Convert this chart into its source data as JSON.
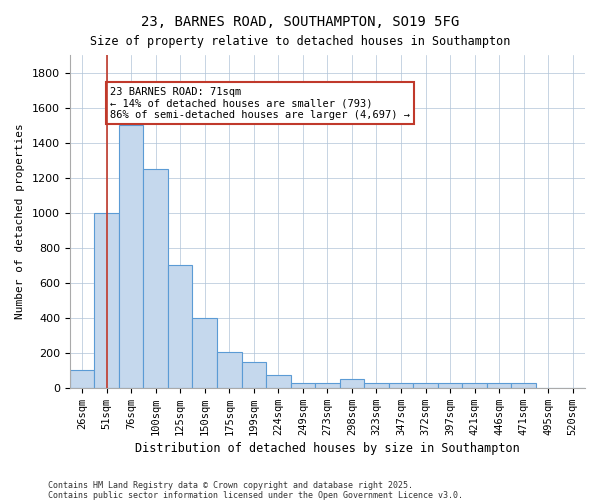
{
  "title1": "23, BARNES ROAD, SOUTHAMPTON, SO19 5FG",
  "title2": "Size of property relative to detached houses in Southampton",
  "xlabel": "Distribution of detached houses by size in Southampton",
  "ylabel": "Number of detached properties",
  "categories": [
    "26sqm",
    "51sqm",
    "76sqm",
    "100sqm",
    "125sqm",
    "150sqm",
    "175sqm",
    "199sqm",
    "224sqm",
    "249sqm",
    "273sqm",
    "298sqm",
    "323sqm",
    "347sqm",
    "372sqm",
    "397sqm",
    "421sqm",
    "446sqm",
    "471sqm",
    "495sqm",
    "520sqm"
  ],
  "values": [
    100,
    1000,
    1500,
    1250,
    700,
    400,
    205,
    150,
    75,
    25,
    25,
    50,
    25,
    25,
    25,
    25,
    25,
    25,
    25,
    0,
    0
  ],
  "bar_color": "#c5d8ed",
  "bar_edge_color": "#5b9bd5",
  "bar_linewidth": 0.8,
  "vline_x": 1,
  "vline_color": "#c0392b",
  "annotation_text": "23 BARNES ROAD: 71sqm\n← 14% of detached houses are smaller (793)\n86% of semi-detached houses are larger (4,697) →",
  "annotation_box_color": "#c0392b",
  "ylim": [
    0,
    1900
  ],
  "yticks": [
    0,
    200,
    400,
    600,
    800,
    1000,
    1200,
    1400,
    1600,
    1800
  ],
  "background_color": "#ffffff",
  "grid_color": "#b0c4d8",
  "footer1": "Contains HM Land Registry data © Crown copyright and database right 2025.",
  "footer2": "Contains public sector information licensed under the Open Government Licence v3.0."
}
